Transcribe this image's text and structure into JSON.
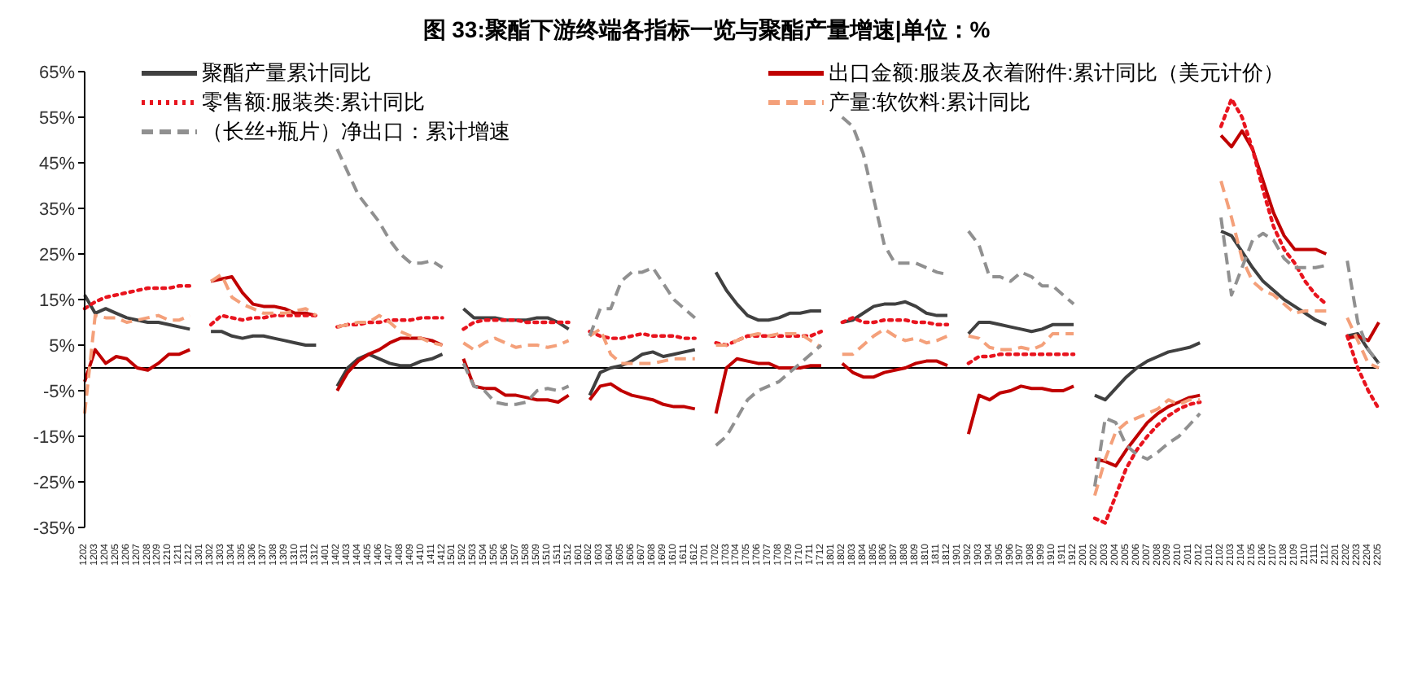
{
  "chart_data": {
    "type": "line",
    "title": "图 33:聚酯下游终端各指标一览与聚酯产量增速|单位：%",
    "categories": [
      "1202",
      "1203",
      "1204",
      "1205",
      "1206",
      "1207",
      "1208",
      "1209",
      "1210",
      "1211",
      "1212",
      "1301",
      "1302",
      "1303",
      "1304",
      "1305",
      "1306",
      "1307",
      "1308",
      "1309",
      "1310",
      "1311",
      "1312",
      "1401",
      "1402",
      "1403",
      "1404",
      "1405",
      "1406",
      "1407",
      "1408",
      "1409",
      "1410",
      "1411",
      "1412",
      "1501",
      "1502",
      "1503",
      "1504",
      "1505",
      "1506",
      "1507",
      "1508",
      "1509",
      "1510",
      "1511",
      "1512",
      "1601",
      "1602",
      "1603",
      "1604",
      "1605",
      "1606",
      "1607",
      "1608",
      "1609",
      "1610",
      "1611",
      "1612",
      "1701",
      "1702",
      "1703",
      "1704",
      "1705",
      "1706",
      "1707",
      "1708",
      "1709",
      "1710",
      "1711",
      "1712",
      "1801",
      "1802",
      "1803",
      "1804",
      "1805",
      "1806",
      "1807",
      "1808",
      "1809",
      "1810",
      "1811",
      "1812",
      "1901",
      "1902",
      "1903",
      "1904",
      "1905",
      "1906",
      "1907",
      "1908",
      "1909",
      "1910",
      "1911",
      "1912",
      "2001",
      "2002",
      "2003",
      "2004",
      "2005",
      "2006",
      "2007",
      "2008",
      "2009",
      "2010",
      "2011",
      "2012",
      "2101",
      "2102",
      "2103",
      "2104",
      "2105",
      "2106",
      "2107",
      "2108",
      "2109",
      "2110",
      "2111",
      "2112",
      "2201",
      "2202",
      "2203",
      "2204",
      "2205"
    ],
    "series": [
      {
        "name": "聚酯产量累计同比",
        "color": "#404040",
        "line_style": "solid",
        "values": [
          16,
          12,
          13,
          12,
          11,
          10.5,
          10,
          10,
          9.5,
          9,
          8.5,
          null,
          8,
          8,
          7,
          6.5,
          7,
          7,
          6.5,
          6,
          5.5,
          5,
          5,
          null,
          -4,
          0,
          2,
          3,
          2,
          1,
          0.5,
          0.5,
          1.5,
          2,
          3,
          null,
          13,
          11,
          11,
          11,
          10.5,
          10.5,
          10.5,
          11,
          11,
          10,
          8.5,
          null,
          -6,
          -1,
          0,
          0.5,
          1.5,
          3,
          3.5,
          2.5,
          3,
          3.5,
          4,
          null,
          21,
          17,
          14,
          11.5,
          10.5,
          10.5,
          11,
          12,
          12,
          12.5,
          12.5,
          null,
          10,
          10.5,
          12,
          13.5,
          14,
          14,
          14.5,
          13.5,
          12,
          11.5,
          11.5,
          null,
          7.5,
          10,
          10,
          9.5,
          9,
          8.5,
          8,
          8.5,
          9.5,
          9.5,
          9.5,
          null,
          -6,
          -7,
          -4.5,
          -2,
          0,
          1.5,
          2.5,
          3.5,
          4,
          4.5,
          5.5,
          null,
          30,
          29,
          25.5,
          22,
          19,
          17,
          15,
          13.5,
          12,
          10.5,
          9.5,
          null,
          7,
          7.5,
          4,
          1
        ]
      },
      {
        "name": "出口金额:服装及衣着附件:累计同比（美元计价）",
        "color": "#c00000",
        "line_style": "solid",
        "values": [
          -3,
          4,
          1,
          2.5,
          2,
          0,
          -0.5,
          1,
          3,
          3,
          4,
          null,
          19,
          19.5,
          20,
          16.5,
          14,
          13.5,
          13.5,
          13,
          12,
          12,
          11.5,
          null,
          -5,
          -1,
          1.5,
          3,
          4,
          5.5,
          6.5,
          6.5,
          6.5,
          6,
          5,
          null,
          2,
          -4,
          -4.5,
          -4.5,
          -6,
          -6,
          -6.5,
          -7,
          -7,
          -7.5,
          -6,
          null,
          -7,
          -4,
          -3.5,
          -5,
          -6,
          -6.5,
          -7,
          -8,
          -8.5,
          -8.5,
          -9,
          null,
          -10,
          0,
          2,
          1.5,
          1,
          1,
          0,
          0,
          0,
          0.5,
          0.5,
          null,
          1,
          -1,
          -2,
          -2,
          -1,
          -0.5,
          0,
          1,
          1.5,
          1.5,
          0.5,
          null,
          -14.5,
          -6,
          -7,
          -5.5,
          -5,
          -4,
          -4.5,
          -4.5,
          -5,
          -5,
          -4,
          null,
          -20,
          -20.5,
          -21.5,
          -18,
          -15,
          -12,
          -10,
          -8.5,
          -7.5,
          -6.5,
          -6,
          null,
          51,
          48.5,
          52,
          48,
          41,
          34,
          29,
          26,
          26,
          26,
          25,
          null,
          6.5,
          7,
          6,
          10
        ]
      },
      {
        "name": "零售额:服装类:累计同比",
        "color": "#e8141e",
        "line_style": "dotted",
        "values": [
          13,
          14.5,
          15.5,
          16,
          16.5,
          17,
          17.5,
          17.5,
          17.5,
          18,
          18,
          null,
          9.5,
          11.5,
          11,
          10.5,
          11,
          11,
          11.5,
          11.5,
          11.5,
          11.5,
          11.5,
          null,
          9,
          9.5,
          9.5,
          10,
          10,
          10.5,
          10.5,
          10.5,
          11,
          11,
          11,
          null,
          8.5,
          10,
          10.5,
          10.5,
          10.5,
          10.5,
          10,
          10,
          10,
          10,
          10,
          null,
          8,
          7,
          6.5,
          6.5,
          7,
          7.5,
          7,
          7,
          7,
          6.5,
          6.5,
          null,
          5.5,
          5,
          6,
          7,
          7,
          7,
          7,
          7,
          7,
          7,
          8,
          null,
          10,
          11,
          10,
          10,
          10.5,
          10.5,
          10.5,
          10,
          10,
          9.5,
          9.5,
          null,
          1,
          2.5,
          2.5,
          3,
          3,
          3,
          3,
          3,
          3,
          3,
          3,
          null,
          -33,
          -34,
          -28,
          -22,
          -18,
          -15,
          -12.5,
          -10.5,
          -9,
          -8,
          -7.5,
          null,
          53,
          59,
          55,
          48,
          39,
          31,
          26,
          23,
          19,
          16,
          14,
          null,
          7,
          0,
          -5,
          -9
        ]
      },
      {
        "name": "产量:软饮料:累计同比",
        "color": "#f4a07a",
        "line_style": "dashed",
        "values": [
          -10,
          11.5,
          11,
          11,
          10,
          10.5,
          11,
          11.5,
          10.5,
          10.5,
          11.5,
          null,
          19,
          20.5,
          15.5,
          14,
          13,
          12,
          12,
          12,
          12.5,
          13,
          11.5,
          null,
          9,
          9.5,
          10,
          10,
          11.5,
          10,
          8,
          7,
          6.5,
          5.5,
          5,
          null,
          5.5,
          4,
          5.5,
          6.5,
          5.5,
          4.5,
          5,
          5,
          4.5,
          5,
          6,
          null,
          7,
          8.5,
          3,
          1,
          1,
          1,
          1,
          1.5,
          2,
          2,
          2,
          null,
          5,
          5,
          6,
          7,
          7.5,
          7,
          7.5,
          7.5,
          7.5,
          6,
          4.5,
          null,
          3,
          3,
          5,
          7,
          8.5,
          7,
          6,
          6.5,
          5.5,
          6,
          7,
          null,
          7,
          6.5,
          4.5,
          4,
          4,
          4.5,
          4,
          5,
          7.5,
          7.5,
          7.5,
          null,
          -28,
          -20,
          -14,
          -12,
          -11,
          -10,
          -9,
          -7,
          -8,
          -7,
          -7,
          null,
          41,
          33,
          24,
          19,
          17,
          16,
          14,
          12,
          12.5,
          12.5,
          12.5,
          null,
          11,
          6,
          1,
          0
        ]
      },
      {
        "name": "（长丝+瓶片）净出口：累计增速",
        "color": "#909090",
        "line_style": "dashed",
        "values": [
          null,
          null,
          null,
          null,
          null,
          null,
          null,
          null,
          null,
          null,
          null,
          null,
          null,
          null,
          null,
          null,
          null,
          null,
          null,
          null,
          null,
          null,
          null,
          null,
          48,
          43,
          38,
          35,
          32,
          28,
          25,
          23,
          23,
          23.5,
          22,
          null,
          1,
          -4,
          -5,
          -7.5,
          -8,
          -8,
          -7.5,
          -5,
          -4.5,
          -5,
          -4,
          null,
          7,
          13,
          13,
          19,
          21,
          21,
          22,
          18.5,
          15,
          13,
          11,
          null,
          -17,
          -15,
          -11,
          -7,
          -5,
          -4,
          -3,
          -1,
          1,
          3,
          5,
          null,
          55,
          53,
          47,
          37,
          27,
          23,
          23,
          23,
          22,
          21,
          20.5,
          null,
          30,
          27,
          20,
          20,
          19,
          21,
          20,
          18,
          18,
          16,
          14,
          null,
          -26,
          -11,
          -12,
          -17,
          -19,
          -20,
          -18.5,
          -16.5,
          -15,
          -12.5,
          -10,
          null,
          33,
          16,
          22,
          28,
          29.5,
          28,
          24,
          22,
          22,
          22,
          22.5,
          null,
          23.5,
          10,
          4,
          1
        ]
      }
    ],
    "ylim": [
      -35,
      65
    ],
    "yticks": [
      {
        "value": -35,
        "label": "-35%"
      },
      {
        "value": -25,
        "label": "-25%"
      },
      {
        "value": -15,
        "label": "-15%"
      },
      {
        "value": -5,
        "label": "-5%"
      },
      {
        "value": 5,
        "label": "5%"
      },
      {
        "value": 15,
        "label": "15%"
      },
      {
        "value": 25,
        "label": "25%"
      },
      {
        "value": 35,
        "label": "35%"
      },
      {
        "value": 45,
        "label": "45%"
      },
      {
        "value": 55,
        "label": "55%"
      },
      {
        "value": 65,
        "label": "65%"
      }
    ],
    "grid": false,
    "legend": "top",
    "marker": "none"
  }
}
